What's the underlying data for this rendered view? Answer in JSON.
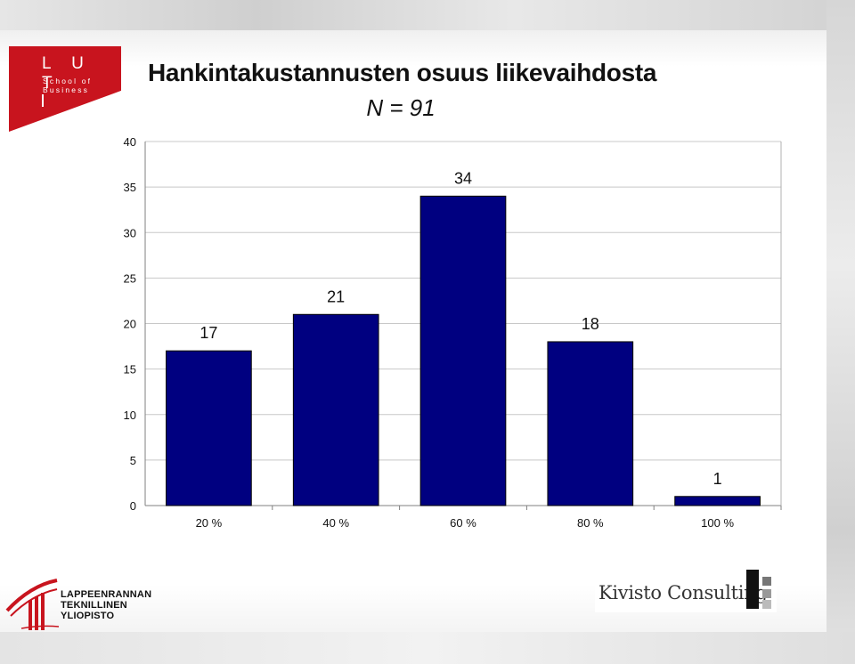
{
  "branding": {
    "lut_letters": "L U T",
    "lut_line1": "School of",
    "lut_line2": "Business",
    "university_line1": "LAPPEENRANNAN",
    "university_line2": "TEKNILLINEN YLIOPISTO",
    "consultant": "Kivisto Consulting",
    "brand_red": "#c8141e"
  },
  "chart_data": {
    "type": "bar",
    "title": "Hankintakustannusten osuus liikevaihdosta",
    "subtitle": "N = 91",
    "categories": [
      "20 %",
      "40 %",
      "60 %",
      "80 %",
      "100 %"
    ],
    "values": [
      17,
      21,
      34,
      18,
      1
    ],
    "data_labels": [
      "17",
      "21",
      "34",
      "18",
      "1"
    ],
    "ylim": [
      0,
      40
    ],
    "yticks": [
      "0",
      "5",
      "10",
      "15",
      "20",
      "25",
      "30",
      "35",
      "40"
    ],
    "xlabel": "",
    "ylabel": "",
    "grid": true,
    "bar_color": "#000080",
    "legend": "none"
  }
}
